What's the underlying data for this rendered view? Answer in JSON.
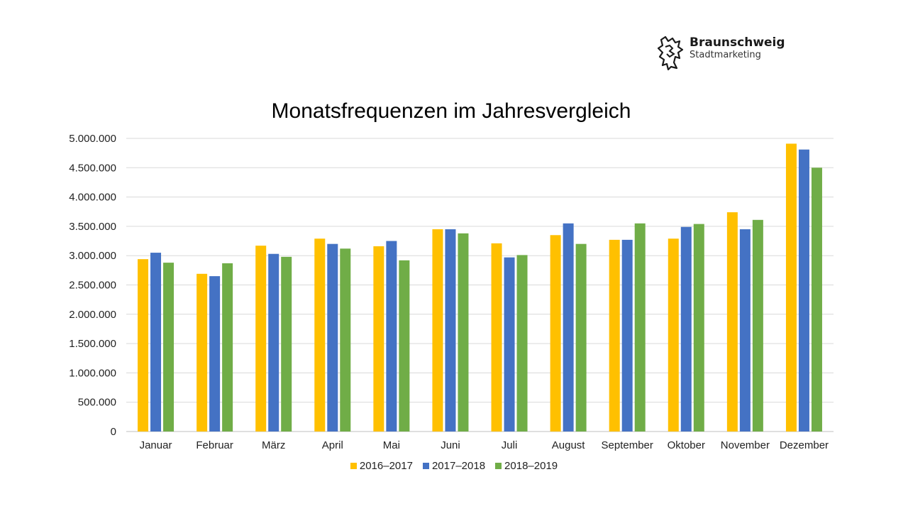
{
  "logo": {
    "name": "Braunschweig",
    "subtitle": "Stadtmarketing"
  },
  "chart_data": {
    "type": "bar",
    "title": "Monatsfrequenzen im Jahresvergleich",
    "xlabel": "",
    "ylabel": "",
    "ylim": [
      0,
      5000000
    ],
    "yticks": [
      0,
      500000,
      1000000,
      1500000,
      2000000,
      2500000,
      3000000,
      3500000,
      4000000,
      4500000,
      5000000
    ],
    "ytick_labels": [
      "0",
      "500.000",
      "1.000.000",
      "1.500.000",
      "2.000.000",
      "2.500.000",
      "3.000.000",
      "3.500.000",
      "4.000.000",
      "4.500.000",
      "5.000.000"
    ],
    "grid": true,
    "legend_position": "bottom",
    "categories": [
      "Januar",
      "Februar",
      "März",
      "April",
      "Mai",
      "Juni",
      "Juli",
      "August",
      "September",
      "Oktober",
      "November",
      "Dezember"
    ],
    "series": [
      {
        "name": "2016–2017",
        "color": "#FFC000",
        "values": [
          2940000,
          2690000,
          3170000,
          3290000,
          3160000,
          3450000,
          3210000,
          3350000,
          3270000,
          3290000,
          3740000,
          4910000
        ]
      },
      {
        "name": "2017–2018",
        "color": "#4472C4",
        "values": [
          3050000,
          2650000,
          3030000,
          3200000,
          3250000,
          3450000,
          2970000,
          3550000,
          3270000,
          3490000,
          3450000,
          4810000
        ]
      },
      {
        "name": "2018–2019",
        "color": "#70AD47",
        "values": [
          2880000,
          2870000,
          2980000,
          3120000,
          2920000,
          3380000,
          3010000,
          3200000,
          3550000,
          3540000,
          3610000,
          4500000
        ]
      }
    ]
  }
}
